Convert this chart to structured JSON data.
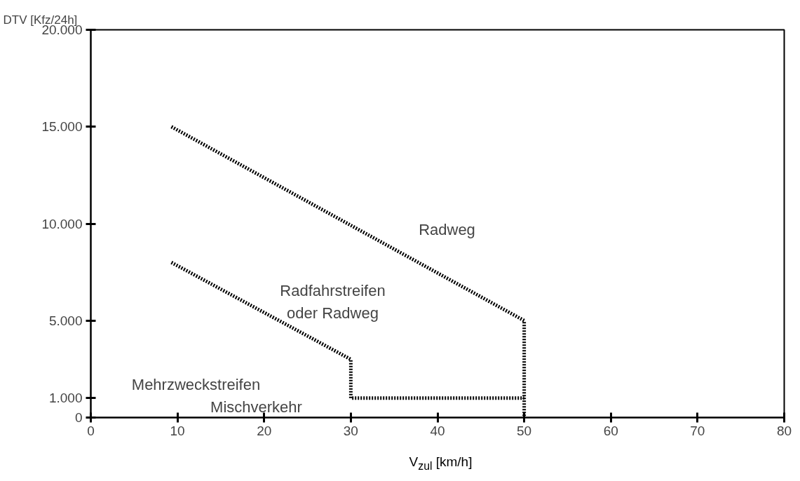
{
  "chart_data": {
    "type": "line",
    "xlabel": "V$_{zul}$ [km/h]",
    "ylabel": "DTV [Kfz/24h]",
    "series": [
      {
        "color": "#000000",
        "x": [
          9.3,
          50,
          50
        ],
        "values": [
          15000,
          5000,
          0
        ]
      },
      {
        "color": "#000000",
        "x": [
          9.3,
          30,
          30,
          50
        ],
        "values": [
          8000,
          3000,
          1000,
          1000
        ]
      }
    ],
    "xlim": [
      0,
      80
    ],
    "xticks": [
      0,
      10,
      20,
      30,
      40,
      50,
      60,
      70,
      80
    ],
    "ylim": [
      0,
      20000
    ],
    "yticks": [
      {
        "value": 0,
        "label": "0"
      },
      {
        "value": 1000,
        "label": "1.000"
      },
      {
        "value": 5000,
        "label": "5.000"
      },
      {
        "value": 10000,
        "label": "10.000"
      },
      {
        "value": 15000,
        "label": "15.000"
      },
      {
        "value": 20000,
        "label": "20.000"
      }
    ],
    "line_style": "dotted",
    "marker": "none",
    "grid": false,
    "annotations": [
      "Radweg",
      "Radfahrstreifen\noder Radweg",
      "Mehrzweckstreifen",
      "Mischverkehr"
    ]
  }
}
